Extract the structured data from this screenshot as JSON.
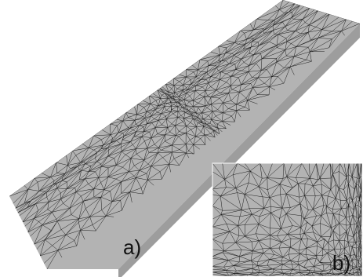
{
  "figure": {
    "panel_a_label": "a)",
    "panel_b_label": "b)"
  },
  "colors": {
    "surface": "#b3b3b3",
    "surface_side": "#9d9d9d",
    "mesh_edge": "#1c1c1c",
    "background": "#ffffff"
  }
}
